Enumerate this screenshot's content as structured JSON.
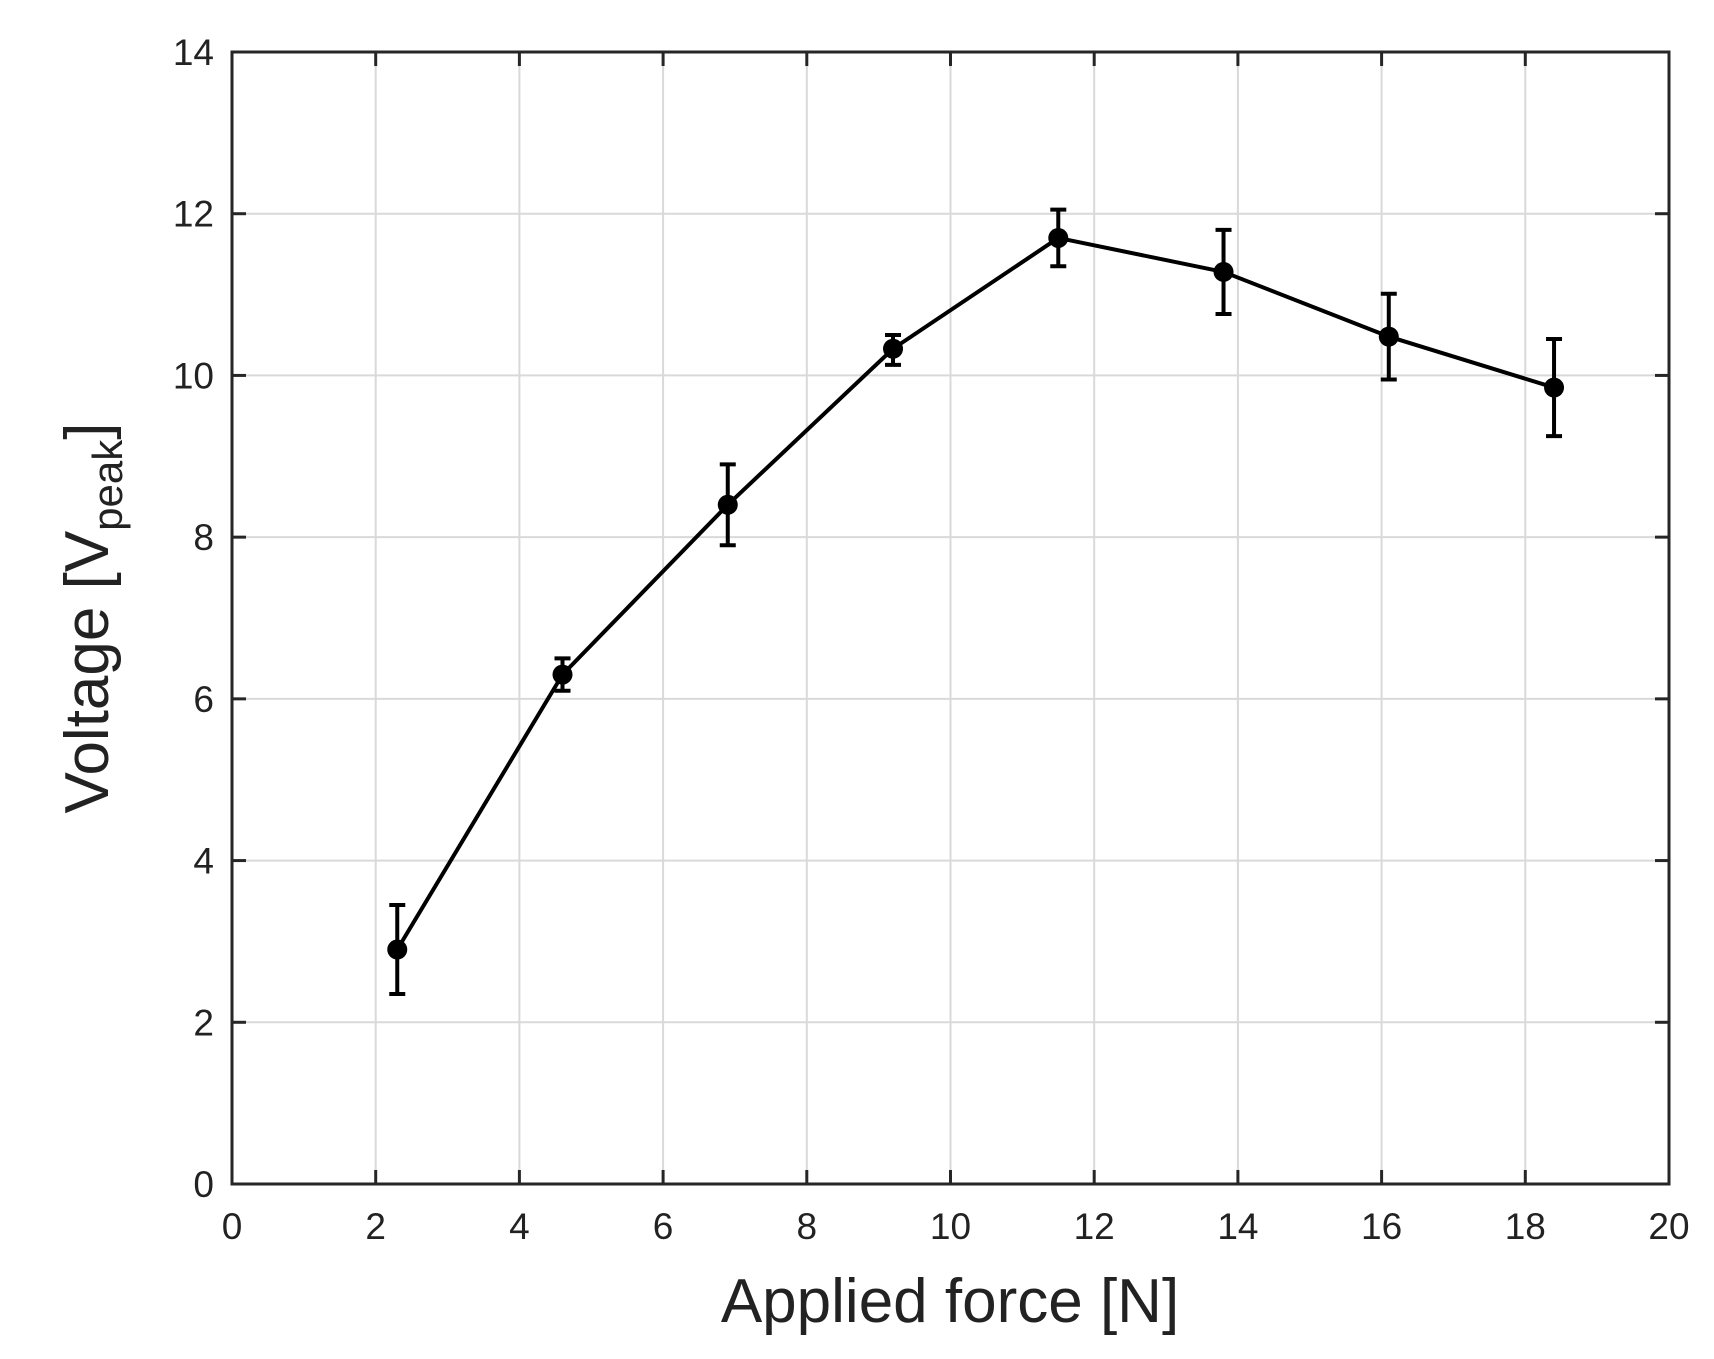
{
  "chart_data": {
    "type": "line",
    "title": "",
    "xlabel": "Applied force [N]",
    "ylabel": {
      "main": "Voltage [V",
      "subscript": "peak",
      "close": "]"
    },
    "xlim": [
      0,
      20
    ],
    "ylim": [
      0,
      14
    ],
    "xticks": [
      0,
      2,
      4,
      6,
      8,
      10,
      12,
      14,
      16,
      18,
      20
    ],
    "yticks": [
      0,
      2,
      4,
      6,
      8,
      10,
      12,
      14
    ],
    "grid": true,
    "legend": null,
    "colors": {
      "line": "#000000",
      "grid": "#d9d9d9",
      "axis": "#262626"
    },
    "series": [
      {
        "x": [
          2.3,
          4.6,
          6.9,
          9.2,
          11.5,
          13.8,
          16.1,
          18.4
        ],
        "y": [
          2.9,
          6.3,
          8.4,
          10.33,
          11.7,
          11.28,
          10.48,
          9.85
        ],
        "err_low": [
          0.55,
          0.2,
          0.5,
          0.2,
          0.35,
          0.52,
          0.53,
          0.6
        ],
        "err_high": [
          0.55,
          0.2,
          0.5,
          0.17,
          0.35,
          0.52,
          0.53,
          0.6
        ]
      }
    ]
  }
}
